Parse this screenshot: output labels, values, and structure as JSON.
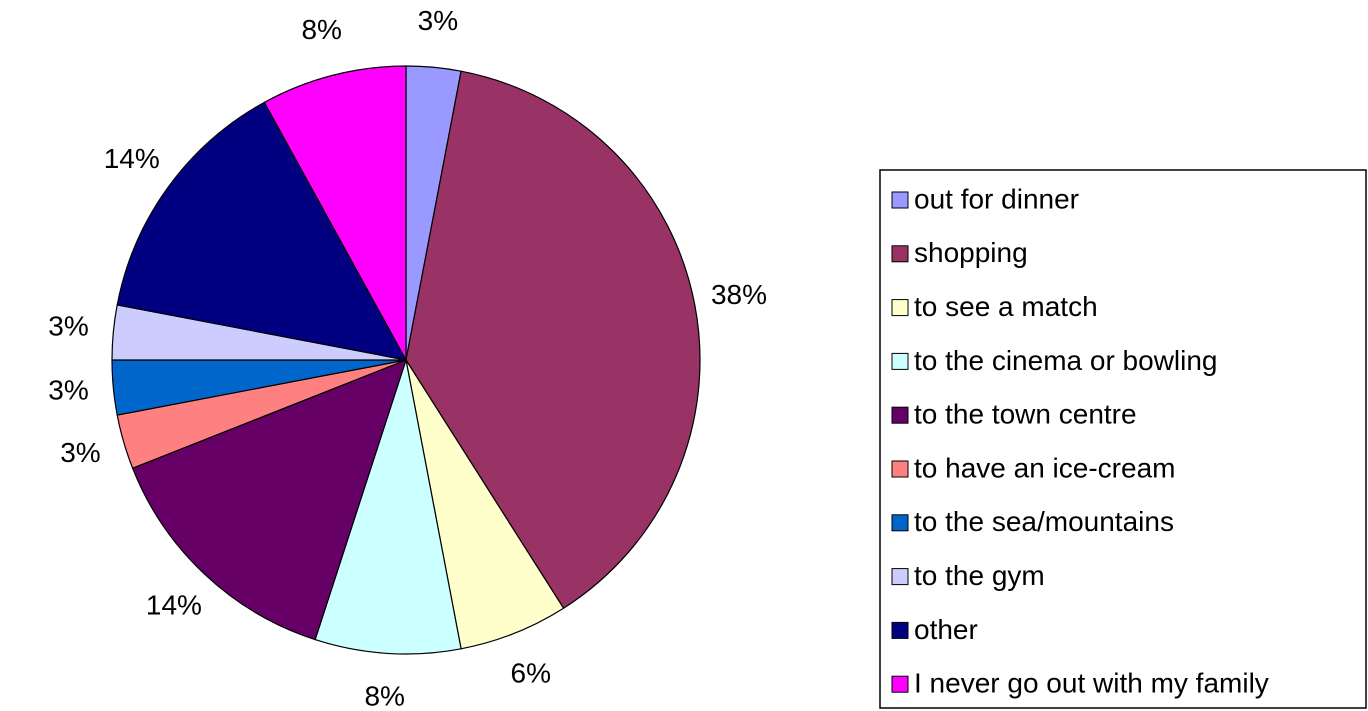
{
  "chart_data": {
    "type": "pie",
    "categories": [
      "out for dinner",
      "shopping",
      "to see a match",
      "to the cinema or bowling",
      "to the town centre",
      "to have an ice-cream",
      "to the sea/mountains",
      "to the gym",
      "other",
      "I never go out with my family"
    ],
    "values": [
      3,
      38,
      6,
      8,
      14,
      3,
      3,
      3,
      14,
      8
    ],
    "value_labels": [
      "3%",
      "38%",
      "6%",
      "8%",
      "14%",
      "3%",
      "3%",
      "3%",
      "14%",
      "8%"
    ],
    "colors": [
      "#9999ff",
      "#993366",
      "#ffffcc",
      "#ccffff",
      "#660066",
      "#ff8080",
      "#0066cc",
      "#ccccff",
      "#000080",
      "#ff00ff"
    ],
    "legend": "right"
  }
}
